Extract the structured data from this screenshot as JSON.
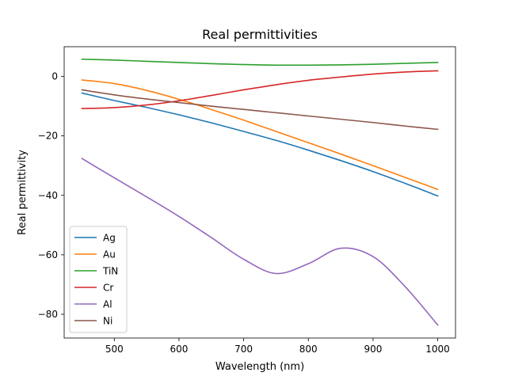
{
  "chart_data": {
    "type": "line",
    "title": "Real permittivities",
    "xlabel": "Wavelength (nm)",
    "ylabel": "Real permittivity",
    "xlim": [
      422.5,
      1027.5
    ],
    "ylim": [
      -88,
      10
    ],
    "xticks": [
      500,
      600,
      700,
      800,
      900,
      1000
    ],
    "yticks": [
      0,
      -20,
      -40,
      -60,
      -80
    ],
    "ytick_labels": [
      "0",
      "−20",
      "−40",
      "−60",
      "−80"
    ],
    "grid": false,
    "legend_position": "lower-left",
    "x": [
      450,
      500,
      550,
      600,
      650,
      700,
      750,
      800,
      850,
      900,
      950,
      1000
    ],
    "series": [
      {
        "name": "Ag",
        "color": "#1f77b4",
        "values": [
          -5.6,
          -8.1,
          -10.4,
          -12.9,
          -15.6,
          -18.5,
          -21.5,
          -24.8,
          -28.3,
          -32.0,
          -36.0,
          -40.2
        ]
      },
      {
        "name": "Au",
        "color": "#ff7f0e",
        "values": [
          -1.2,
          -2.4,
          -4.7,
          -7.7,
          -11.1,
          -14.7,
          -18.5,
          -22.3,
          -26.1,
          -30.0,
          -34.0,
          -38.0
        ]
      },
      {
        "name": "TiN",
        "color": "#2ca02c",
        "values": [
          5.8,
          5.5,
          5.1,
          4.7,
          4.3,
          4.0,
          3.8,
          3.8,
          3.9,
          4.1,
          4.4,
          4.7
        ]
      },
      {
        "name": "Cr",
        "color": "#d62728",
        "values": [
          -10.8,
          -10.5,
          -9.6,
          -8.2,
          -6.4,
          -4.5,
          -2.8,
          -1.3,
          -0.2,
          0.8,
          1.5,
          1.9
        ]
      },
      {
        "name": "Al",
        "color": "#9467bd",
        "values": [
          -27.6,
          -34.1,
          -40.5,
          -47.1,
          -54.2,
          -61.5,
          -66.3,
          -63.0,
          -57.8,
          -60.6,
          -70.8,
          -83.6
        ]
      },
      {
        "name": "Ni",
        "color": "#8c564b",
        "values": [
          -4.5,
          -6.2,
          -7.6,
          -8.8,
          -10.0,
          -11.1,
          -12.2,
          -13.3,
          -14.4,
          -15.5,
          -16.7,
          -17.8
        ]
      }
    ]
  }
}
